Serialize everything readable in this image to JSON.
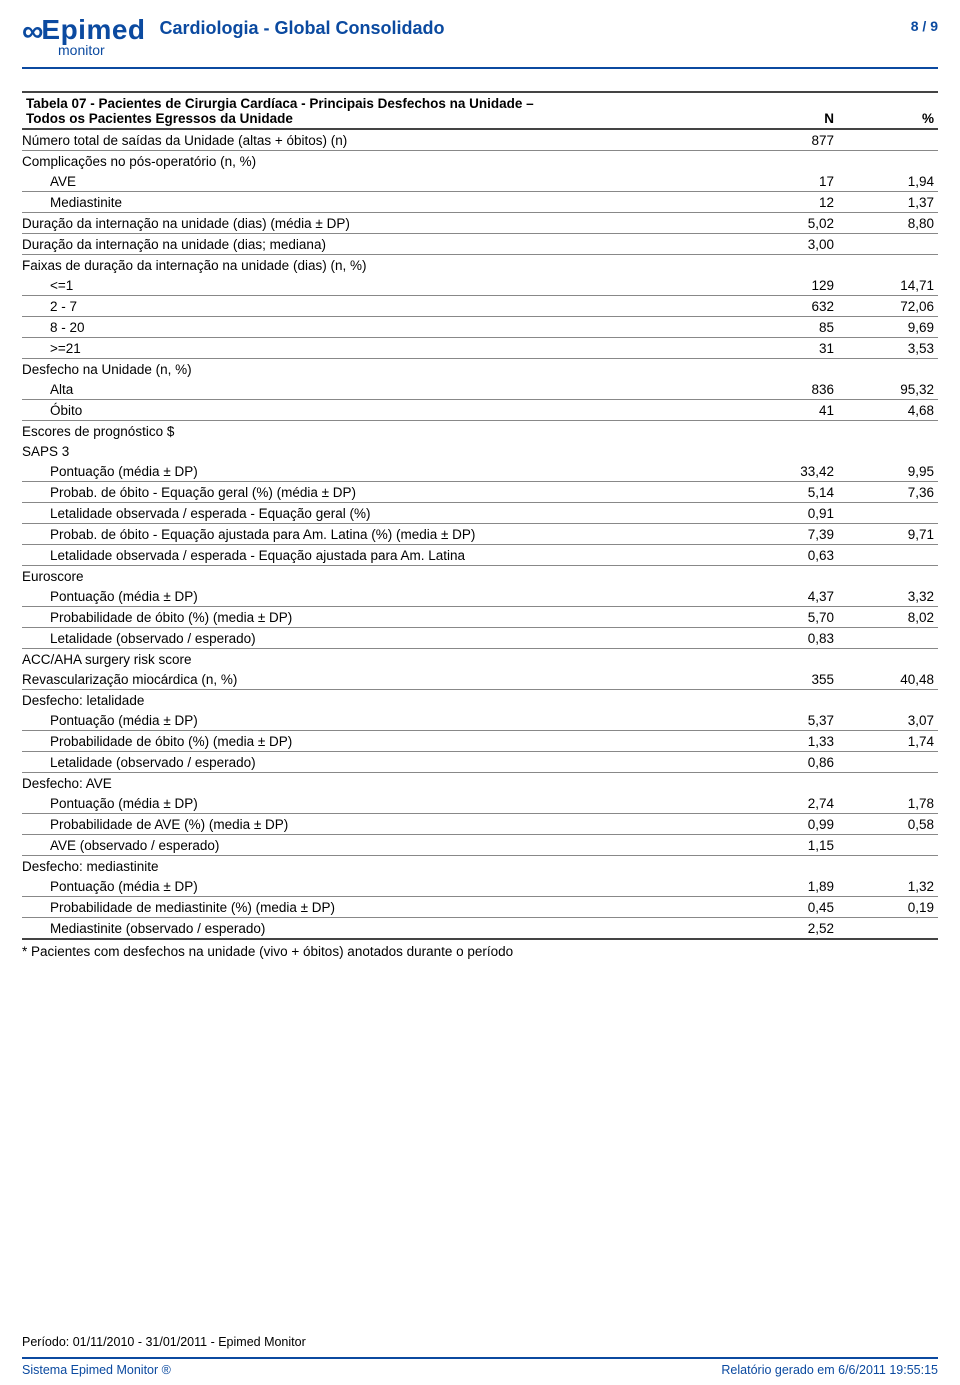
{
  "header": {
    "logo_main_prefix": "∞",
    "logo_main": "Epimed",
    "logo_sub": "monitor",
    "title": "Cardiologia - Global Consolidado",
    "page": "8 / 9"
  },
  "table": {
    "title_line1": "Tabela 07 - Pacientes de Cirurgia Cardíaca - Principais Desfechos na Unidade –",
    "title_line2": "Todos os Pacientes Egressos da Unidade",
    "col_n": "N",
    "col_p": "%",
    "rows": [
      {
        "label": "Número total de saídas da Unidade (altas + óbitos) (n)",
        "n": "877",
        "p": "",
        "indent": 0,
        "border": "section"
      },
      {
        "label": "Complicações no pós-operatório (n, %)",
        "n": "",
        "p": "",
        "indent": 0,
        "border": "none"
      },
      {
        "label": "AVE",
        "n": "17",
        "p": "1,94",
        "indent": 1,
        "border": "section"
      },
      {
        "label": "Mediastinite",
        "n": "12",
        "p": "1,37",
        "indent": 1,
        "border": "section"
      },
      {
        "label": "Duração da internação na unidade (dias) (média ± DP)",
        "n": "5,02",
        "p": "8,80",
        "indent": 0,
        "border": "section"
      },
      {
        "label": "Duração da internação na unidade (dias; mediana)",
        "n": "3,00",
        "p": "",
        "indent": 0,
        "border": "section"
      },
      {
        "label": "Faixas de duração da internação na unidade (dias) (n, %)",
        "n": "",
        "p": "",
        "indent": 0,
        "border": "none"
      },
      {
        "label": "<=1",
        "n": "129",
        "p": "14,71",
        "indent": 1,
        "border": "section"
      },
      {
        "label": "2 - 7",
        "n": "632",
        "p": "72,06",
        "indent": 1,
        "border": "section"
      },
      {
        "label": "8 - 20",
        "n": "85",
        "p": "9,69",
        "indent": 1,
        "border": "section"
      },
      {
        "label": ">=21",
        "n": "31",
        "p": "3,53",
        "indent": 1,
        "border": "section"
      },
      {
        "label": "Desfecho na Unidade (n, %)",
        "n": "",
        "p": "",
        "indent": 0,
        "border": "none"
      },
      {
        "label": "Alta",
        "n": "836",
        "p": "95,32",
        "indent": 1,
        "border": "section"
      },
      {
        "label": "Óbito",
        "n": "41",
        "p": "4,68",
        "indent": 1,
        "border": "section"
      },
      {
        "label": "Escores de prognóstico $",
        "n": "",
        "p": "",
        "indent": 0,
        "border": "none"
      },
      {
        "label": "SAPS 3",
        "n": "",
        "p": "",
        "indent": 0,
        "border": "none"
      },
      {
        "label": "Pontuação (média ± DP)",
        "n": "33,42",
        "p": "9,95",
        "indent": 1,
        "border": "section"
      },
      {
        "label": "Probab. de óbito - Equação geral (%) (média ± DP)",
        "n": "5,14",
        "p": "7,36",
        "indent": 1,
        "border": "section"
      },
      {
        "label": "Letalidade observada / esperada - Equação geral (%)",
        "n": "0,91",
        "p": "",
        "indent": 1,
        "border": "section"
      },
      {
        "label": "Probab. de óbito - Equação ajustada para Am. Latina (%) (media ± DP)",
        "n": "7,39",
        "p": "9,71",
        "indent": 1,
        "border": "section"
      },
      {
        "label": "Letalidade observada / esperada - Equação ajustada para Am. Latina",
        "n": "0,63",
        "p": "",
        "indent": 1,
        "border": "section"
      },
      {
        "label": "Euroscore",
        "n": "",
        "p": "",
        "indent": 0,
        "border": "none"
      },
      {
        "label": "Pontuação (média ± DP)",
        "n": "4,37",
        "p": "3,32",
        "indent": 1,
        "border": "section"
      },
      {
        "label": "Probabilidade de óbito (%) (media ± DP)",
        "n": "5,70",
        "p": "8,02",
        "indent": 1,
        "border": "section"
      },
      {
        "label": "Letalidade (observado / esperado)",
        "n": "0,83",
        "p": "",
        "indent": 1,
        "border": "section"
      },
      {
        "label": "ACC/AHA surgery risk score",
        "n": "",
        "p": "",
        "indent": 0,
        "border": "none"
      },
      {
        "label": "Revascularização miocárdica (n, %)",
        "n": "355",
        "p": "40,48",
        "indent": 0,
        "border": "section"
      },
      {
        "label": "Desfecho: letalidade",
        "n": "",
        "p": "",
        "indent": 0,
        "border": "none"
      },
      {
        "label": "Pontuação (média ± DP)",
        "n": "5,37",
        "p": "3,07",
        "indent": 1,
        "border": "section"
      },
      {
        "label": "Probabilidade de óbito (%) (media ± DP)",
        "n": "1,33",
        "p": "1,74",
        "indent": 1,
        "border": "section"
      },
      {
        "label": "Letalidade (observado / esperado)",
        "n": "0,86",
        "p": "",
        "indent": 1,
        "border": "section"
      },
      {
        "label": "Desfecho: AVE",
        "n": "",
        "p": "",
        "indent": 0,
        "border": "none"
      },
      {
        "label": "Pontuação (média ± DP)",
        "n": "2,74",
        "p": "1,78",
        "indent": 1,
        "border": "section"
      },
      {
        "label": "Probabilidade de AVE (%) (media ± DP)",
        "n": "0,99",
        "p": "0,58",
        "indent": 1,
        "border": "section"
      },
      {
        "label": "AVE (observado / esperado)",
        "n": "1,15",
        "p": "",
        "indent": 1,
        "border": "section"
      },
      {
        "label": "Desfecho: mediastinite",
        "n": "",
        "p": "",
        "indent": 0,
        "border": "none"
      },
      {
        "label": "Pontuação (média ± DP)",
        "n": "1,89",
        "p": "1,32",
        "indent": 1,
        "border": "section"
      },
      {
        "label": "Probabilidade de mediastinite (%) (media ± DP)",
        "n": "0,45",
        "p": "0,19",
        "indent": 1,
        "border": "section"
      },
      {
        "label": "Mediastinite (observado / esperado)",
        "n": "2,52",
        "p": "",
        "indent": 1,
        "border": "end"
      }
    ],
    "footnote": "* Pacientes com desfechos na unidade (vivo + óbitos) anotados durante o período"
  },
  "footer": {
    "period": "Período: 01/11/2010 - 31/01/2011 - Epimed Monitor",
    "left": "Sistema Epimed Monitor ®",
    "right": "Relatório gerado em 6/6/2011 19:55:15"
  }
}
